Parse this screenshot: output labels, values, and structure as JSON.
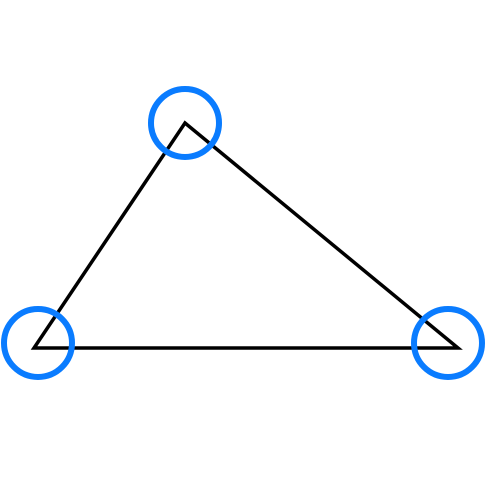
{
  "diagram": {
    "title": "",
    "colors": {
      "background": "#ffffff",
      "edge": "#000000",
      "vertex_marker": "#0a7cff"
    },
    "shape": "triangle",
    "vertex_count": 3
  }
}
